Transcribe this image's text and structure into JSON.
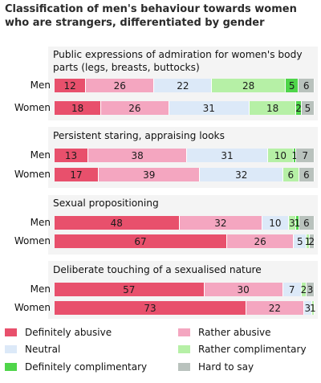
{
  "title_lines": [
    "Classification of men's behaviour towards women",
    "who are strangers, differentiated by gender"
  ],
  "unit": "(%)",
  "chart_data": {
    "type": "bar",
    "orientation": "horizontal",
    "stacked": true,
    "title": "Classification of men's behaviour towards women who are strangers, differentiated by gender",
    "xlim": [
      0,
      100
    ],
    "legend_position": "bottom",
    "categories": [
      "Definitely abusive",
      "Rather abusive",
      "Neutral",
      "Rather complimentary",
      "Definitely complimentary",
      "Hard to say"
    ],
    "colors": [
      "#e8506c",
      "#f4a6c0",
      "#dce9f8",
      "#b6f0a6",
      "#4fd54a",
      "#b9c2bd"
    ],
    "groups": [
      {
        "title_lines": [
          "Public expressions of admiration for women's body",
          "parts (legs, breasts, buttocks)"
        ],
        "rows": [
          {
            "label": "Men",
            "values": [
              12,
              26,
              22,
              28,
              5,
              6
            ]
          },
          {
            "label": "Women",
            "values": [
              18,
              26,
              31,
              18,
              2,
              5
            ]
          }
        ]
      },
      {
        "title_lines": [
          "Persistent staring, appraising looks"
        ],
        "rows": [
          {
            "label": "Men",
            "values": [
              13,
              38,
              31,
              10,
              1,
              7
            ]
          },
          {
            "label": "Women",
            "values": [
              17,
              39,
              32,
              6,
              0,
              6
            ]
          }
        ]
      },
      {
        "title_lines": [
          "Sexual propositioning"
        ],
        "rows": [
          {
            "label": "Men",
            "values": [
              48,
              32,
              10,
              3,
              1,
              6
            ]
          },
          {
            "label": "Women",
            "values": [
              67,
              26,
              5,
              1,
              0,
              2
            ]
          }
        ]
      },
      {
        "title_lines": [
          "Deliberate touching of a sexualised nature"
        ],
        "rows": [
          {
            "label": "Men",
            "values": [
              57,
              30,
              7,
              2,
              0,
              3
            ]
          },
          {
            "label": "Women",
            "values": [
              73,
              22,
              3,
              1,
              0,
              0
            ]
          }
        ]
      }
    ]
  }
}
